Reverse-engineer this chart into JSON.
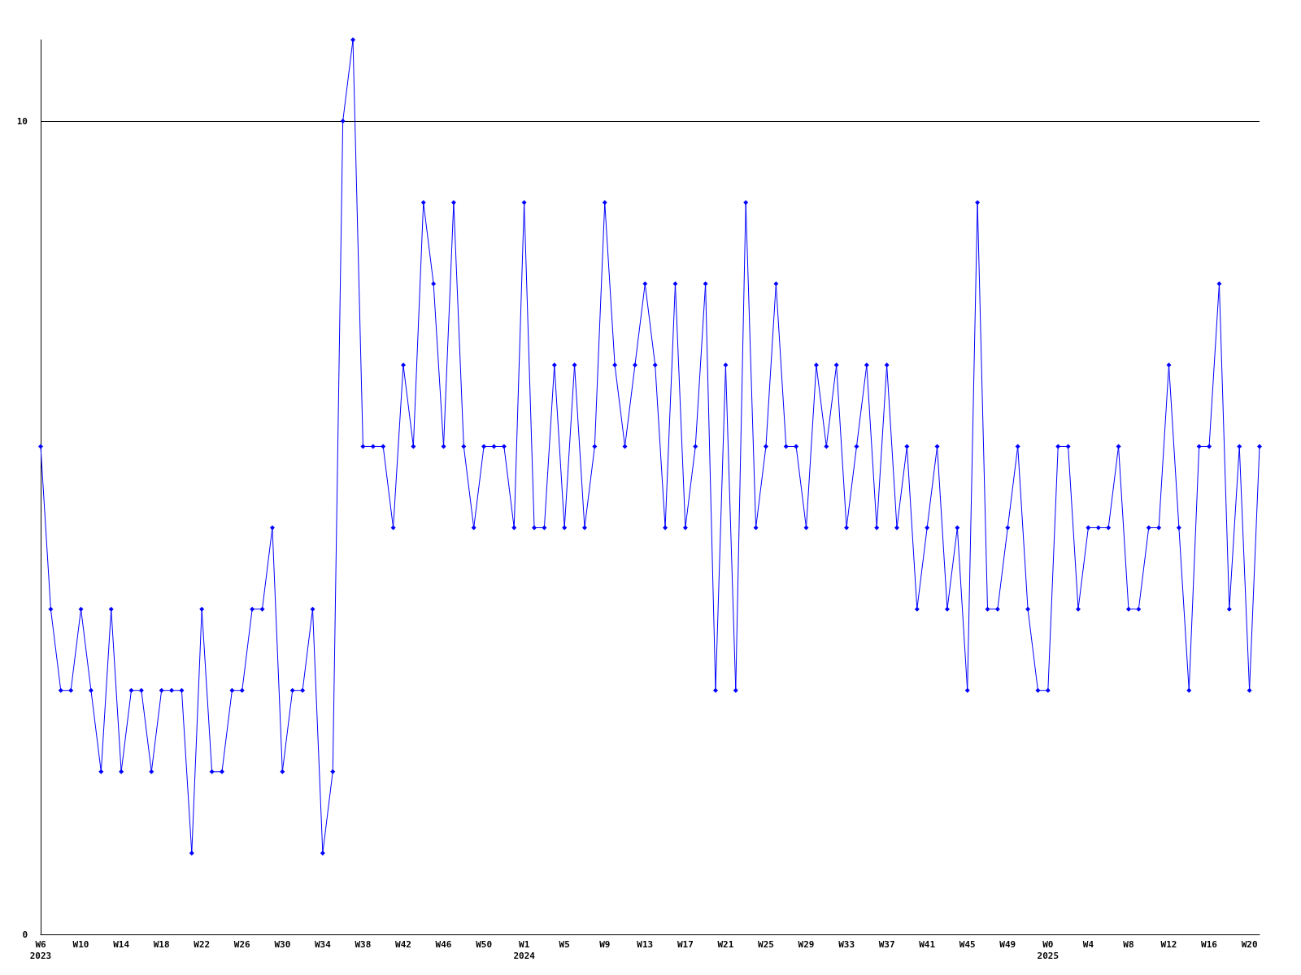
{
  "chart_data": {
    "type": "line",
    "categories": [
      "W6\n2023",
      null,
      null,
      null,
      "W10",
      null,
      null,
      null,
      "W14",
      null,
      null,
      null,
      "W18",
      null,
      null,
      null,
      "W22",
      null,
      null,
      null,
      "W26",
      null,
      null,
      null,
      "W30",
      null,
      null,
      null,
      "W34",
      null,
      null,
      null,
      "W38",
      null,
      null,
      null,
      "W42",
      null,
      null,
      null,
      "W46",
      null,
      null,
      null,
      "W50",
      null,
      null,
      null,
      "W1\n2024",
      null,
      null,
      null,
      "W5",
      null,
      null,
      null,
      "W9",
      null,
      null,
      null,
      "W13",
      null,
      null,
      null,
      "W17",
      null,
      null,
      null,
      "W21",
      null,
      null,
      null,
      "W25",
      null,
      null,
      null,
      "W29",
      null,
      null,
      null,
      "W33",
      null,
      null,
      null,
      "W37",
      null,
      null,
      null,
      "W41",
      null,
      null,
      null,
      "W45",
      null,
      null,
      null,
      "W49",
      null,
      null,
      null,
      "W0\n2025",
      null,
      null,
      null,
      "W4",
      null,
      null,
      null,
      "W8",
      null,
      null,
      null,
      "W12",
      null,
      null,
      null,
      "W16",
      null,
      null,
      null,
      "W20",
      null
    ],
    "series": [
      {
        "color": "#0000ff",
        "values": [
          6,
          4,
          3,
          3,
          4,
          3,
          2,
          4,
          2,
          3,
          3,
          2,
          3,
          3,
          3,
          1,
          4,
          2,
          2,
          3,
          3,
          4,
          4,
          5,
          2,
          3,
          3,
          4,
          1,
          2,
          10,
          11,
          6,
          6,
          6,
          5,
          7,
          6,
          9,
          8,
          6,
          9,
          6,
          5,
          6,
          6,
          6,
          5,
          9,
          5,
          5,
          7,
          5,
          7,
          5,
          6,
          9,
          7,
          6,
          7,
          8,
          7,
          5,
          8,
          5,
          6,
          8,
          3,
          7,
          3,
          9,
          5,
          6,
          8,
          6,
          6,
          5,
          7,
          6,
          7,
          5,
          6,
          7,
          5,
          7,
          5,
          6,
          4,
          5,
          6,
          4,
          5,
          3,
          9,
          4,
          4,
          5,
          6,
          4,
          3,
          3,
          6,
          6,
          4,
          5,
          5,
          5,
          6,
          4,
          4,
          5,
          5,
          7,
          5,
          3,
          6,
          6,
          8,
          4,
          6,
          3,
          6
        ]
      }
    ],
    "ylim": [
      0,
      11
    ],
    "yticks": [
      0,
      10
    ],
    "grid": "y",
    "marker": "diamond",
    "line_style": "solid"
  }
}
